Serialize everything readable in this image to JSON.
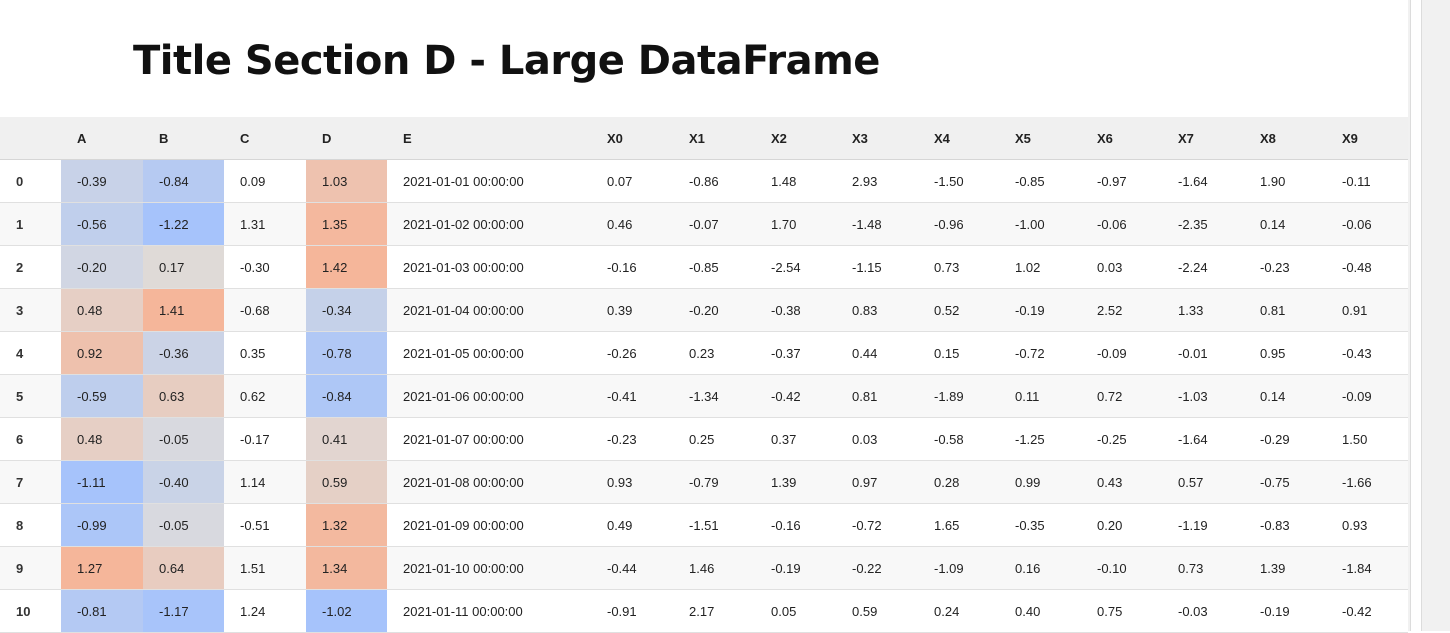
{
  "title": "Title Section D - Large DataFrame",
  "table": {
    "columns": [
      "",
      "A",
      "B",
      "C",
      "D",
      "E",
      "X0",
      "X1",
      "X2",
      "X3",
      "X4",
      "X5",
      "X6",
      "X7",
      "X8",
      "X9"
    ],
    "rows": [
      {
        "index": "0",
        "A": "-0.39",
        "B": "-0.84",
        "C": "0.09",
        "D": "1.03",
        "E": "2021-01-01 00:00:00",
        "X": [
          "0.07",
          "-0.86",
          "1.48",
          "2.93",
          "-1.50",
          "-0.85",
          "-0.97",
          "-1.64",
          "1.90",
          "-0.11"
        ]
      },
      {
        "index": "1",
        "A": "-0.56",
        "B": "-1.22",
        "C": "1.31",
        "D": "1.35",
        "E": "2021-01-02 00:00:00",
        "X": [
          "0.46",
          "-0.07",
          "1.70",
          "-1.48",
          "-0.96",
          "-1.00",
          "-0.06",
          "-2.35",
          "0.14",
          "-0.06"
        ]
      },
      {
        "index": "2",
        "A": "-0.20",
        "B": "0.17",
        "C": "-0.30",
        "D": "1.42",
        "E": "2021-01-03 00:00:00",
        "X": [
          "-0.16",
          "-0.85",
          "-2.54",
          "-1.15",
          "0.73",
          "1.02",
          "0.03",
          "-2.24",
          "-0.23",
          "-0.48"
        ]
      },
      {
        "index": "3",
        "A": "0.48",
        "B": "1.41",
        "C": "-0.68",
        "D": "-0.34",
        "E": "2021-01-04 00:00:00",
        "X": [
          "0.39",
          "-0.20",
          "-0.38",
          "0.83",
          "0.52",
          "-0.19",
          "2.52",
          "1.33",
          "0.81",
          "0.91"
        ]
      },
      {
        "index": "4",
        "A": "0.92",
        "B": "-0.36",
        "C": "0.35",
        "D": "-0.78",
        "E": "2021-01-05 00:00:00",
        "X": [
          "-0.26",
          "0.23",
          "-0.37",
          "0.44",
          "0.15",
          "-0.72",
          "-0.09",
          "-0.01",
          "0.95",
          "-0.43"
        ]
      },
      {
        "index": "5",
        "A": "-0.59",
        "B": "0.63",
        "C": "0.62",
        "D": "-0.84",
        "E": "2021-01-06 00:00:00",
        "X": [
          "-0.41",
          "-1.34",
          "-0.42",
          "0.81",
          "-1.89",
          "0.11",
          "0.72",
          "-1.03",
          "0.14",
          "-0.09"
        ]
      },
      {
        "index": "6",
        "A": "0.48",
        "B": "-0.05",
        "C": "-0.17",
        "D": "0.41",
        "E": "2021-01-07 00:00:00",
        "X": [
          "-0.23",
          "0.25",
          "0.37",
          "0.03",
          "-0.58",
          "-1.25",
          "-0.25",
          "-1.64",
          "-0.29",
          "1.50"
        ]
      },
      {
        "index": "7",
        "A": "-1.11",
        "B": "-0.40",
        "C": "1.14",
        "D": "0.59",
        "E": "2021-01-08 00:00:00",
        "X": [
          "0.93",
          "-0.79",
          "1.39",
          "0.97",
          "0.28",
          "0.99",
          "0.43",
          "0.57",
          "-0.75",
          "-1.66"
        ]
      },
      {
        "index": "8",
        "A": "-0.99",
        "B": "-0.05",
        "C": "-0.51",
        "D": "1.32",
        "E": "2021-01-09 00:00:00",
        "X": [
          "0.49",
          "-1.51",
          "-0.16",
          "-0.72",
          "1.65",
          "-0.35",
          "0.20",
          "-1.19",
          "-0.83",
          "0.93"
        ]
      },
      {
        "index": "9",
        "A": "1.27",
        "B": "0.64",
        "C": "1.51",
        "D": "1.34",
        "E": "2021-01-10 00:00:00",
        "X": [
          "-0.44",
          "1.46",
          "-0.19",
          "-0.22",
          "-1.09",
          "0.16",
          "-0.10",
          "0.73",
          "1.39",
          "-1.84"
        ]
      },
      {
        "index": "10",
        "A": "-0.81",
        "B": "-1.17",
        "C": "1.24",
        "D": "-1.02",
        "E": "2021-01-11 00:00:00",
        "X": [
          "-0.91",
          "2.17",
          "0.05",
          "0.59",
          "0.24",
          "0.40",
          "0.75",
          "-0.03",
          "-0.19",
          "-0.42"
        ]
      }
    ]
  },
  "heatmap": {
    "columns": [
      "A",
      "B",
      "D"
    ],
    "low_color": "#a6c3fb",
    "mid_color": "#dedcdb",
    "high_color": "#f5b69a"
  }
}
